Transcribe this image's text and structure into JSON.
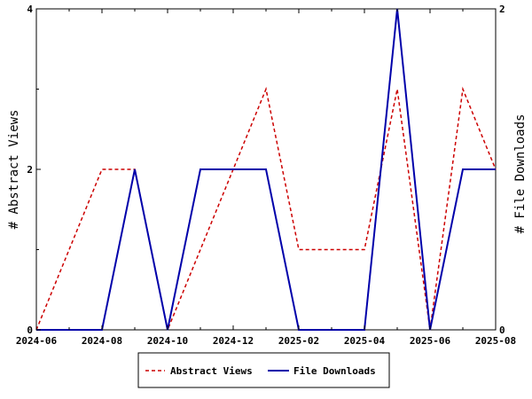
{
  "chart_data": {
    "type": "line",
    "x": [
      "2024-06",
      "2024-07",
      "2024-08",
      "2024-09",
      "2024-10",
      "2024-11",
      "2024-12",
      "2025-01",
      "2025-02",
      "2025-03",
      "2025-04",
      "2025-05",
      "2025-06",
      "2025-07",
      "2025-08"
    ],
    "x_tick_labels": [
      "2024-06",
      "2024-08",
      "2024-10",
      "2024-12",
      "2025-02",
      "2025-04",
      "2025-06",
      "2025-08"
    ],
    "series": [
      {
        "name": "Abstract Views",
        "axis": "left",
        "color": "#cc0000",
        "dash": "dashed",
        "values": [
          0,
          1,
          2,
          2,
          0,
          1,
          2,
          3,
          1,
          1,
          1,
          3,
          0,
          3,
          2
        ]
      },
      {
        "name": "File Downloads",
        "axis": "right",
        "color": "#0000aa",
        "dash": "solid",
        "values": [
          0,
          0,
          0,
          1,
          0,
          1,
          1,
          1,
          0,
          0,
          0,
          2,
          0,
          1,
          1
        ]
      }
    ],
    "ylabel": "# Abstract Views",
    "ylabel_right": "# File Downloads",
    "ylim": [
      0,
      4
    ],
    "ylim_right": [
      0,
      2
    ],
    "yticks": [
      "0",
      "2",
      "4"
    ],
    "yticks_right": [
      "0",
      "2"
    ],
    "legend_position": "bottom",
    "grid": false
  }
}
